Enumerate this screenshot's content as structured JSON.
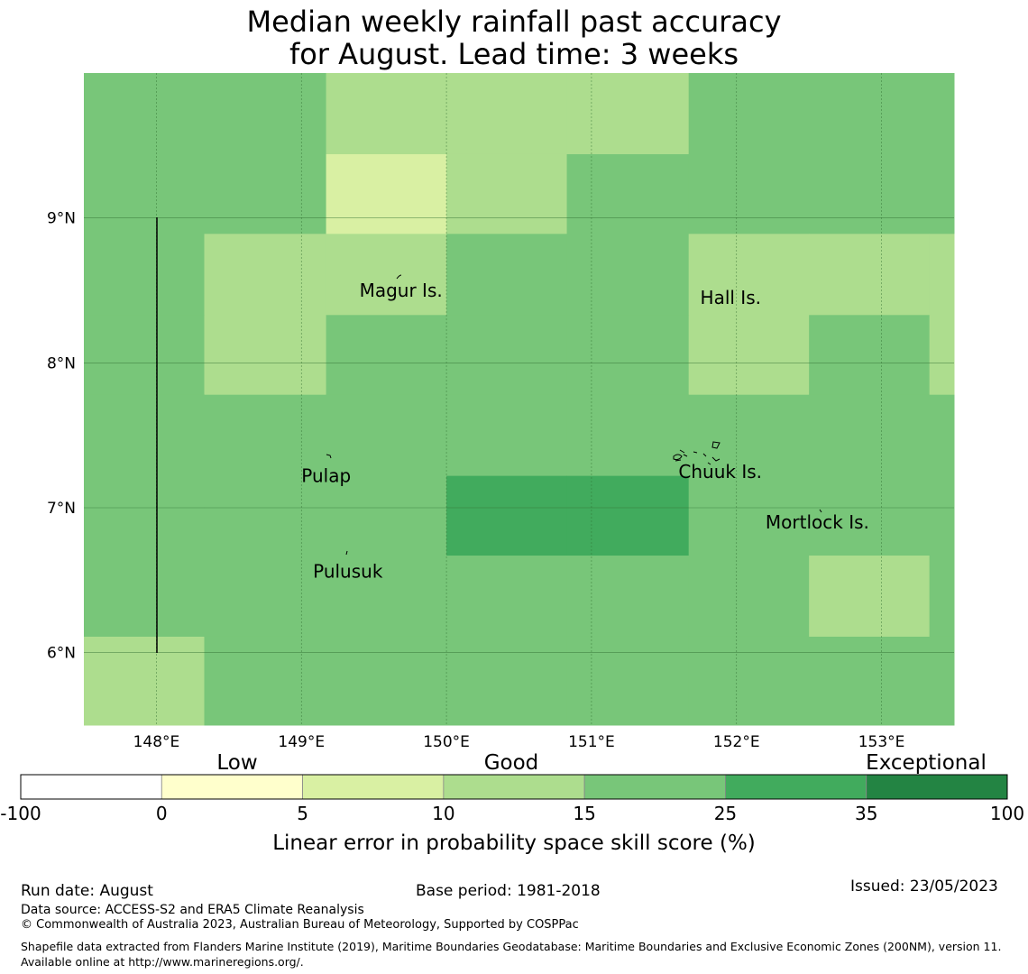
{
  "title": {
    "line1": "Median weekly rainfall past accuracy",
    "line2": "for August. Lead time: 3 weeks"
  },
  "map": {
    "lon_ticks": [
      "148°E",
      "149°E",
      "150°E",
      "151°E",
      "152°E",
      "153°E"
    ],
    "lat_ticks": [
      "9°N",
      "8°N",
      "7°N",
      "6°N"
    ],
    "places": [
      {
        "name": "Magur Is.",
        "lon": 149.4,
        "lat": 8.5
      },
      {
        "name": "Hall Is.",
        "lon": 151.75,
        "lat": 8.45
      },
      {
        "name": "Pulap",
        "lon": 149.0,
        "lat": 7.22
      },
      {
        "name": "Chuuk Is.",
        "lon": 151.6,
        "lat": 7.25
      },
      {
        "name": "Mortlock Is.",
        "lon": 152.2,
        "lat": 6.9
      },
      {
        "name": "Pulusuk",
        "lon": 149.08,
        "lat": 6.56
      }
    ]
  },
  "grid": {
    "lon_edges": [
      147.5,
      148.33,
      149.17,
      150.0,
      150.83,
      151.67,
      152.5,
      153.33,
      153.5
    ],
    "lat_edges_top_down": [
      10.0,
      9.44,
      8.89,
      8.33,
      7.78,
      7.22,
      6.67,
      6.11,
      5.5
    ],
    "classes": [
      [
        4,
        4,
        3,
        3,
        3,
        4,
        4,
        4
      ],
      [
        4,
        4,
        2,
        3,
        4,
        4,
        4,
        4
      ],
      [
        4,
        3,
        3,
        4,
        4,
        3,
        3,
        3
      ],
      [
        4,
        3,
        4,
        4,
        4,
        3,
        4,
        3
      ],
      [
        4,
        4,
        4,
        4,
        4,
        4,
        4,
        4
      ],
      [
        4,
        4,
        4,
        5,
        5,
        4,
        4,
        4
      ],
      [
        4,
        4,
        4,
        4,
        4,
        4,
        3,
        4
      ],
      [
        3,
        4,
        4,
        4,
        4,
        4,
        4,
        4
      ]
    ]
  },
  "legend": {
    "category_labels": [
      "Low",
      "Good",
      "Exceptional"
    ],
    "bins": [
      "-100",
      "0",
      "5",
      "10",
      "15",
      "25",
      "35",
      "100"
    ],
    "colors": [
      "#ffffff",
      "#ffffcc",
      "#d9f0a3",
      "#addd8e",
      "#78c679",
      "#41ab5d",
      "#238443"
    ],
    "axis_label": "Linear error in probability space skill score (%)"
  },
  "footer": {
    "run_date": "Run date: August",
    "base_period": "Base period: 1981-2018",
    "issued": "Issued: 23/05/2023",
    "data_source": "Data source: ACCESS-S2 and ERA5 Climate Reanalysis",
    "copyright": "© Commonwealth of Australia 2023, Australian Bureau of Meteorology, Supported by COSPPac",
    "shapefile": "Shapefile data extracted from Flanders Marine Institute (2019), Maritime Boundaries Geodatabase: Maritime Boundaries and Exclusive Economic Zones (200NM), version 11. Available online at http://www.marineregions.org/."
  }
}
